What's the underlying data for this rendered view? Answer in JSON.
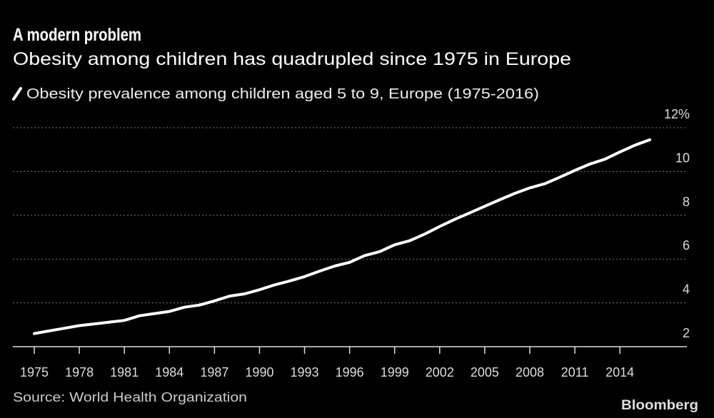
{
  "header": {
    "title": "A modern problem",
    "subtitle": "Obesity among children has quadrupled since 1975 in Europe"
  },
  "footer": {
    "source": "Source: World Health Organization",
    "logo": "Bloomberg"
  },
  "colors": {
    "background": "#000000",
    "line": "#ffffff",
    "grid": "#777777"
  },
  "chart_data": {
    "type": "line",
    "title": "A modern problem",
    "subtitle": "Obesity among children has quadrupled since 1975 in Europe",
    "legend": {
      "position": "top-left",
      "entries": [
        "Obesity prevalence among children aged 5 to 9, Europe (1975-2016)"
      ]
    },
    "xlabel": "",
    "ylabel": "",
    "y_unit": "%",
    "ylim": [
      2,
      12
    ],
    "xlim": [
      1975,
      2016
    ],
    "y_ticks": [
      "2",
      "4",
      "6",
      "8",
      "10",
      "12%"
    ],
    "y_tick_values": [
      2,
      4,
      6,
      8,
      10,
      12
    ],
    "x_ticks": [
      "1975",
      "1978",
      "1981",
      "1984",
      "1987",
      "1990",
      "1993",
      "1996",
      "1999",
      "2002",
      "2005",
      "2008",
      "2011",
      "2014"
    ],
    "y_axis_side": "right",
    "grid": "horizontal dotted",
    "series": [
      {
        "name": "Obesity prevalence among children aged 5 to 9, Europe (1975-2016)",
        "x": [
          1975,
          1976,
          1977,
          1978,
          1979,
          1980,
          1981,
          1982,
          1983,
          1984,
          1985,
          1986,
          1987,
          1988,
          1989,
          1990,
          1991,
          1992,
          1993,
          1994,
          1995,
          1996,
          1997,
          1998,
          1999,
          2000,
          2001,
          2002,
          2003,
          2004,
          2005,
          2006,
          2007,
          2008,
          2009,
          2010,
          2011,
          2012,
          2013,
          2014,
          2015,
          2016
        ],
        "values": [
          2.6,
          2.72,
          2.84,
          2.96,
          3.04,
          3.12,
          3.2,
          3.41,
          3.51,
          3.61,
          3.8,
          3.9,
          4.09,
          4.31,
          4.41,
          4.6,
          4.82,
          5.0,
          5.2,
          5.45,
          5.68,
          5.85,
          6.16,
          6.34,
          6.65,
          6.84,
          7.14,
          7.49,
          7.81,
          8.11,
          8.41,
          8.71,
          9.0,
          9.25,
          9.44,
          9.74,
          10.05,
          10.34,
          10.56,
          10.89,
          11.2,
          11.45
        ]
      }
    ]
  }
}
